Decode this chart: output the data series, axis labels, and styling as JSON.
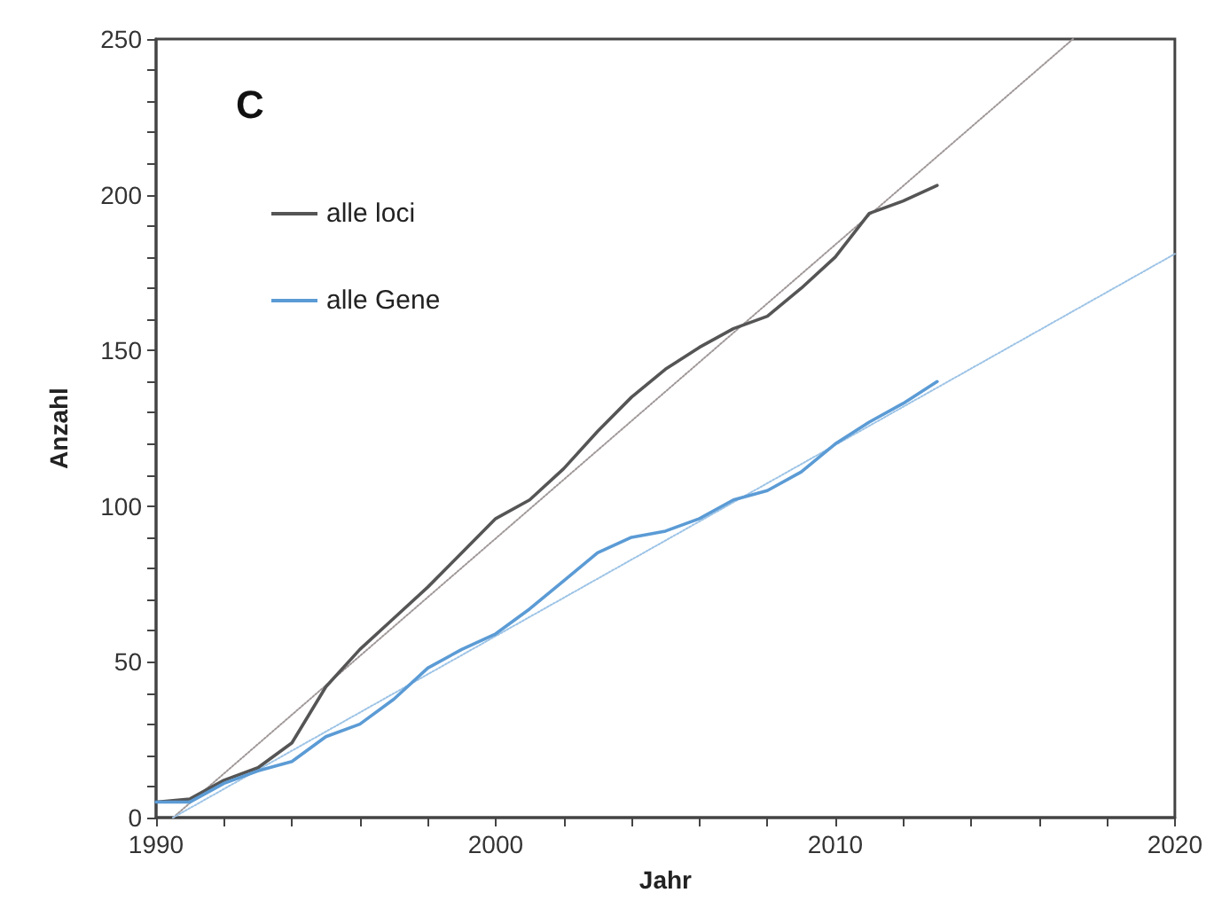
{
  "chart_data": {
    "type": "line",
    "title": "C",
    "xlabel": "Jahr",
    "ylabel": "Anzahl",
    "xlim": [
      1990,
      2020
    ],
    "ylim": [
      0,
      250
    ],
    "xticks": [
      1990,
      {
        "value": 1992,
        "label": null
      },
      {
        "value": 1994,
        "label": null
      },
      {
        "value": 1996,
        "label": null
      },
      {
        "value": 1998,
        "label": null
      },
      2000,
      {
        "value": 2002,
        "label": null
      },
      {
        "value": 2004,
        "label": null
      },
      {
        "value": 2006,
        "label": null
      },
      {
        "value": 2008,
        "label": null
      },
      2010,
      {
        "value": 2012,
        "label": null
      },
      {
        "value": 2014,
        "label": null
      },
      {
        "value": 2016,
        "label": null
      },
      {
        "value": 2018,
        "label": null
      },
      2020
    ],
    "yticks": [
      0,
      {
        "value": 10,
        "label": null
      },
      {
        "value": 20,
        "label": null
      },
      {
        "value": 30,
        "label": null
      },
      {
        "value": 40,
        "label": null
      },
      50,
      {
        "value": 60,
        "label": null
      },
      {
        "value": 70,
        "label": null
      },
      {
        "value": 80,
        "label": null
      },
      {
        "value": 90,
        "label": null
      },
      100,
      {
        "value": 110,
        "label": null
      },
      {
        "value": 120,
        "label": null
      },
      {
        "value": 130,
        "label": null
      },
      {
        "value": 140,
        "label": null
      },
      150,
      {
        "value": 160,
        "label": null
      },
      {
        "value": 170,
        "label": null
      },
      {
        "value": 180,
        "label": null
      },
      {
        "value": 190,
        "label": null
      },
      200,
      {
        "value": 210,
        "label": null
      },
      {
        "value": 220,
        "label": null
      },
      {
        "value": 230,
        "label": null
      },
      {
        "value": 240,
        "label": null
      },
      250
    ],
    "x": [
      1990,
      1991,
      1992,
      1993,
      1994,
      1995,
      1996,
      1997,
      1998,
      1999,
      2000,
      2001,
      2002,
      2003,
      2004,
      2005,
      2006,
      2007,
      2008,
      2009,
      2010,
      2011,
      2012,
      2013
    ],
    "grid": false,
    "legend": "top left",
    "marker": "none",
    "series": [
      {
        "name": "alle loci",
        "color": "#555555",
        "line_style": "solid",
        "values": [
          5,
          6,
          12,
          16,
          24,
          42,
          54,
          64,
          74,
          85,
          96,
          102,
          112,
          124,
          135,
          144,
          151,
          157,
          161,
          170,
          180,
          194,
          198,
          203
        ]
      },
      {
        "name": "alle Gene",
        "color": "#5b9bd5",
        "line_style": "solid",
        "values": [
          5,
          5,
          11,
          15,
          18,
          26,
          30,
          38,
          48,
          54,
          59,
          67,
          76,
          85,
          90,
          92,
          96,
          102,
          105,
          111,
          120,
          127,
          133,
          140
        ]
      },
      {
        "color": "#a09898",
        "line_style": "dotted",
        "x": [
          1990.5,
          2017
        ],
        "values": [
          0,
          250
        ]
      },
      {
        "color": "#9cc3e6",
        "line_style": "dotted",
        "x": [
          1990.5,
          2020
        ],
        "values": [
          0,
          181
        ]
      }
    ]
  }
}
